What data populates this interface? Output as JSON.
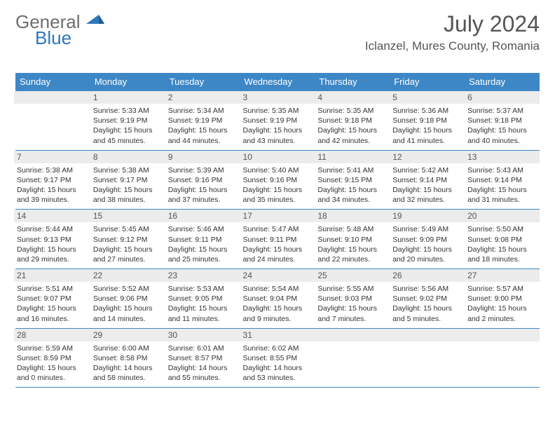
{
  "logo": {
    "line1": "General",
    "line2": "Blue",
    "color_general": "#6e6e6e",
    "color_blue": "#2f77b9"
  },
  "title": "July 2024",
  "location": "Iclanzel, Mures County, Romania",
  "colors": {
    "header_bg": "#3d87c6",
    "daynum_bg": "#ececec",
    "text": "#333333"
  },
  "weekdays": [
    "Sunday",
    "Monday",
    "Tuesday",
    "Wednesday",
    "Thursday",
    "Friday",
    "Saturday"
  ],
  "weeks": [
    [
      {
        "n": "",
        "sunrise": "",
        "sunset": "",
        "daylight": ""
      },
      {
        "n": "1",
        "sunrise": "Sunrise: 5:33 AM",
        "sunset": "Sunset: 9:19 PM",
        "daylight": "Daylight: 15 hours and 45 minutes."
      },
      {
        "n": "2",
        "sunrise": "Sunrise: 5:34 AM",
        "sunset": "Sunset: 9:19 PM",
        "daylight": "Daylight: 15 hours and 44 minutes."
      },
      {
        "n": "3",
        "sunrise": "Sunrise: 5:35 AM",
        "sunset": "Sunset: 9:19 PM",
        "daylight": "Daylight: 15 hours and 43 minutes."
      },
      {
        "n": "4",
        "sunrise": "Sunrise: 5:35 AM",
        "sunset": "Sunset: 9:18 PM",
        "daylight": "Daylight: 15 hours and 42 minutes."
      },
      {
        "n": "5",
        "sunrise": "Sunrise: 5:36 AM",
        "sunset": "Sunset: 9:18 PM",
        "daylight": "Daylight: 15 hours and 41 minutes."
      },
      {
        "n": "6",
        "sunrise": "Sunrise: 5:37 AM",
        "sunset": "Sunset: 9:18 PM",
        "daylight": "Daylight: 15 hours and 40 minutes."
      }
    ],
    [
      {
        "n": "7",
        "sunrise": "Sunrise: 5:38 AM",
        "sunset": "Sunset: 9:17 PM",
        "daylight": "Daylight: 15 hours and 39 minutes."
      },
      {
        "n": "8",
        "sunrise": "Sunrise: 5:38 AM",
        "sunset": "Sunset: 9:17 PM",
        "daylight": "Daylight: 15 hours and 38 minutes."
      },
      {
        "n": "9",
        "sunrise": "Sunrise: 5:39 AM",
        "sunset": "Sunset: 9:16 PM",
        "daylight": "Daylight: 15 hours and 37 minutes."
      },
      {
        "n": "10",
        "sunrise": "Sunrise: 5:40 AM",
        "sunset": "Sunset: 9:16 PM",
        "daylight": "Daylight: 15 hours and 35 minutes."
      },
      {
        "n": "11",
        "sunrise": "Sunrise: 5:41 AM",
        "sunset": "Sunset: 9:15 PM",
        "daylight": "Daylight: 15 hours and 34 minutes."
      },
      {
        "n": "12",
        "sunrise": "Sunrise: 5:42 AM",
        "sunset": "Sunset: 9:14 PM",
        "daylight": "Daylight: 15 hours and 32 minutes."
      },
      {
        "n": "13",
        "sunrise": "Sunrise: 5:43 AM",
        "sunset": "Sunset: 9:14 PM",
        "daylight": "Daylight: 15 hours and 31 minutes."
      }
    ],
    [
      {
        "n": "14",
        "sunrise": "Sunrise: 5:44 AM",
        "sunset": "Sunset: 9:13 PM",
        "daylight": "Daylight: 15 hours and 29 minutes."
      },
      {
        "n": "15",
        "sunrise": "Sunrise: 5:45 AM",
        "sunset": "Sunset: 9:12 PM",
        "daylight": "Daylight: 15 hours and 27 minutes."
      },
      {
        "n": "16",
        "sunrise": "Sunrise: 5:46 AM",
        "sunset": "Sunset: 9:11 PM",
        "daylight": "Daylight: 15 hours and 25 minutes."
      },
      {
        "n": "17",
        "sunrise": "Sunrise: 5:47 AM",
        "sunset": "Sunset: 9:11 PM",
        "daylight": "Daylight: 15 hours and 24 minutes."
      },
      {
        "n": "18",
        "sunrise": "Sunrise: 5:48 AM",
        "sunset": "Sunset: 9:10 PM",
        "daylight": "Daylight: 15 hours and 22 minutes."
      },
      {
        "n": "19",
        "sunrise": "Sunrise: 5:49 AM",
        "sunset": "Sunset: 9:09 PM",
        "daylight": "Daylight: 15 hours and 20 minutes."
      },
      {
        "n": "20",
        "sunrise": "Sunrise: 5:50 AM",
        "sunset": "Sunset: 9:08 PM",
        "daylight": "Daylight: 15 hours and 18 minutes."
      }
    ],
    [
      {
        "n": "21",
        "sunrise": "Sunrise: 5:51 AM",
        "sunset": "Sunset: 9:07 PM",
        "daylight": "Daylight: 15 hours and 16 minutes."
      },
      {
        "n": "22",
        "sunrise": "Sunrise: 5:52 AM",
        "sunset": "Sunset: 9:06 PM",
        "daylight": "Daylight: 15 hours and 14 minutes."
      },
      {
        "n": "23",
        "sunrise": "Sunrise: 5:53 AM",
        "sunset": "Sunset: 9:05 PM",
        "daylight": "Daylight: 15 hours and 11 minutes."
      },
      {
        "n": "24",
        "sunrise": "Sunrise: 5:54 AM",
        "sunset": "Sunset: 9:04 PM",
        "daylight": "Daylight: 15 hours and 9 minutes."
      },
      {
        "n": "25",
        "sunrise": "Sunrise: 5:55 AM",
        "sunset": "Sunset: 9:03 PM",
        "daylight": "Daylight: 15 hours and 7 minutes."
      },
      {
        "n": "26",
        "sunrise": "Sunrise: 5:56 AM",
        "sunset": "Sunset: 9:02 PM",
        "daylight": "Daylight: 15 hours and 5 minutes."
      },
      {
        "n": "27",
        "sunrise": "Sunrise: 5:57 AM",
        "sunset": "Sunset: 9:00 PM",
        "daylight": "Daylight: 15 hours and 2 minutes."
      }
    ],
    [
      {
        "n": "28",
        "sunrise": "Sunrise: 5:59 AM",
        "sunset": "Sunset: 8:59 PM",
        "daylight": "Daylight: 15 hours and 0 minutes."
      },
      {
        "n": "29",
        "sunrise": "Sunrise: 6:00 AM",
        "sunset": "Sunset: 8:58 PM",
        "daylight": "Daylight: 14 hours and 58 minutes."
      },
      {
        "n": "30",
        "sunrise": "Sunrise: 6:01 AM",
        "sunset": "Sunset: 8:57 PM",
        "daylight": "Daylight: 14 hours and 55 minutes."
      },
      {
        "n": "31",
        "sunrise": "Sunrise: 6:02 AM",
        "sunset": "Sunset: 8:55 PM",
        "daylight": "Daylight: 14 hours and 53 minutes."
      },
      {
        "n": "",
        "sunrise": "",
        "sunset": "",
        "daylight": ""
      },
      {
        "n": "",
        "sunrise": "",
        "sunset": "",
        "daylight": ""
      },
      {
        "n": "",
        "sunrise": "",
        "sunset": "",
        "daylight": ""
      }
    ]
  ]
}
